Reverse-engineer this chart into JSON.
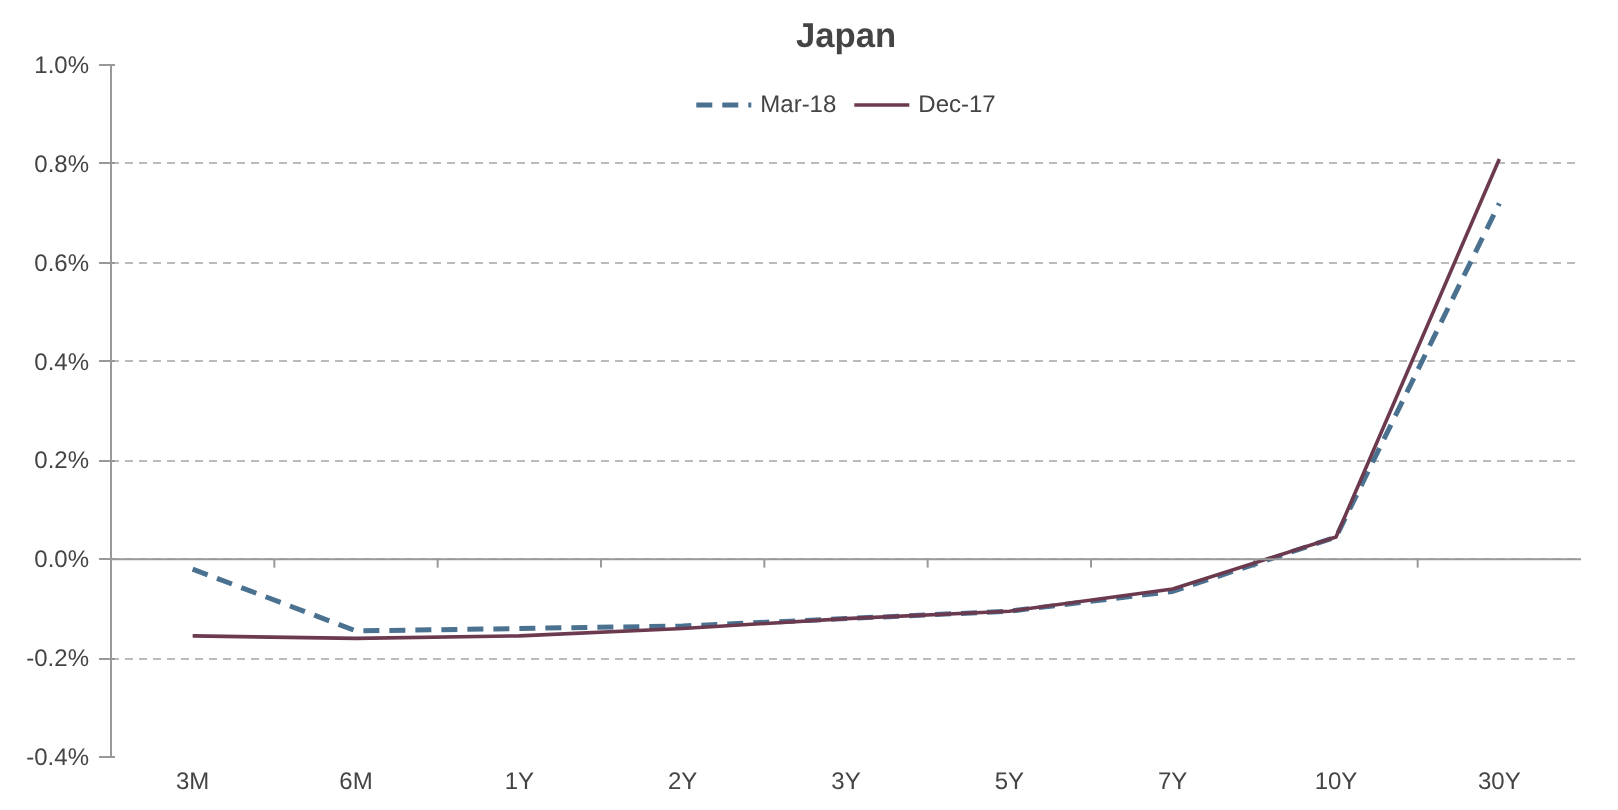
{
  "chart_data": {
    "type": "line",
    "title": "Japan",
    "categories": [
      "3M",
      "6M",
      "1Y",
      "2Y",
      "3Y",
      "5Y",
      "7Y",
      "10Y",
      "30Y"
    ],
    "series": [
      {
        "name": "Mar-18",
        "color": "#4a7190",
        "line_style": "dashed",
        "values": [
          -0.02,
          -0.145,
          -0.14,
          -0.135,
          -0.12,
          -0.105,
          -0.065,
          0.045,
          0.72
        ]
      },
      {
        "name": "Dec-17",
        "color": "#6b3a4f",
        "line_style": "solid",
        "values": [
          -0.155,
          -0.16,
          -0.155,
          -0.14,
          -0.12,
          -0.105,
          -0.06,
          0.045,
          0.81
        ]
      }
    ],
    "ylim": [
      -0.4,
      1.0
    ],
    "yticks": [
      {
        "value": -0.4,
        "label": "-0.4%"
      },
      {
        "value": -0.2,
        "label": "-0.2%"
      },
      {
        "value": 0,
        "label": "0.0%"
      },
      {
        "value": 0.2,
        "label": "0.2%"
      },
      {
        "value": 0.4,
        "label": "0.4%"
      },
      {
        "value": 0.6,
        "label": "0.6%"
      },
      {
        "value": 0.8,
        "label": "0.8%"
      },
      {
        "value": 1.0,
        "label": "1.0%"
      }
    ],
    "grid": "y",
    "legend": "top",
    "marker": "none"
  }
}
